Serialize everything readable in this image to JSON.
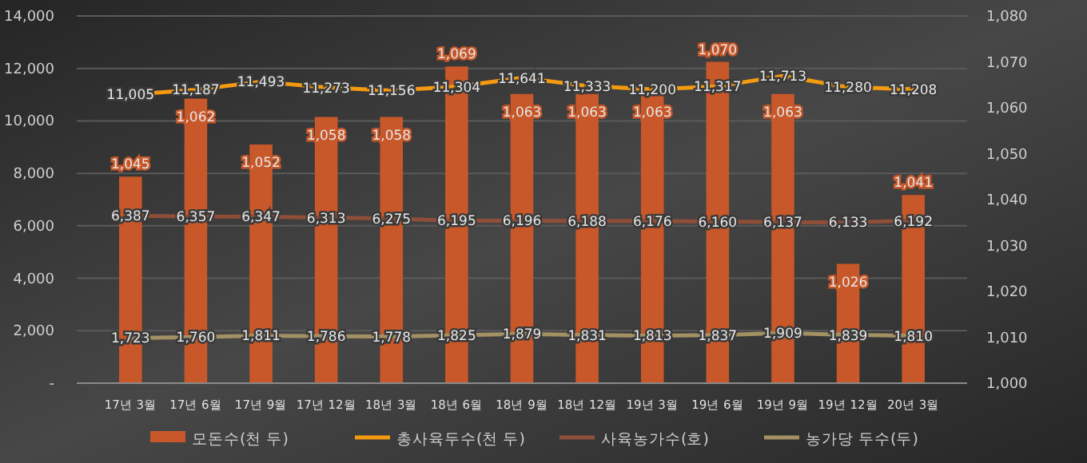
{
  "chart_data": {
    "type": "bar",
    "categories": [
      "17년 3월",
      "17년 6월",
      "17년 9월",
      "17년 12월",
      "18년 3월",
      "18년 6월",
      "18년 9월",
      "18년 12월",
      "19년 3월",
      "19년 6월",
      "19년 9월",
      "19년 12월",
      "20년 3월"
    ],
    "series": [
      {
        "name": "모돈수(천 두)",
        "axis": "y2",
        "color": "#c8582a",
        "values": [
          1045,
          1062,
          1052,
          1058,
          1058,
          1069,
          1063,
          1063,
          1063,
          1070,
          1063,
          1026,
          1041
        ],
        "value_labels": [
          "1,045",
          "1,062",
          "1,052",
          "1,058",
          "1,058",
          "1,069",
          "1,063",
          "1,063",
          "1,063",
          "1,070",
          "1,063",
          "1,026",
          "1,041"
        ]
      },
      {
        "name": "총사육두수(천 두)",
        "type": "line",
        "axis": "y",
        "color": "#f39a12",
        "values": [
          11005,
          11187,
          11493,
          11273,
          11156,
          11304,
          11641,
          11333,
          11200,
          11317,
          11713,
          11280,
          11208
        ],
        "value_labels": [
          "11,005",
          "11,187",
          "11,493",
          "11,273",
          "11,156",
          "11,304",
          "11,641",
          "11,333",
          "11,200",
          "11,317",
          "11,713",
          "11,280",
          "11,208"
        ]
      },
      {
        "name": "사육농가수(호)",
        "type": "line",
        "axis": "y",
        "color": "#8e4e38",
        "values": [
          6387,
          6357,
          6347,
          6313,
          6275,
          6195,
          6196,
          6188,
          6176,
          6160,
          6137,
          6133,
          6192
        ],
        "value_labels": [
          "6,387",
          "6,357",
          "6,347",
          "6,313",
          "6,275",
          "6,195",
          "6,196",
          "6,188",
          "6,176",
          "6,160",
          "6,137",
          "6,133",
          "6,192"
        ]
      },
      {
        "name": "농가당 두수(두)",
        "type": "line",
        "axis": "y",
        "color": "#a39164",
        "values": [
          1723,
          1760,
          1811,
          1786,
          1778,
          1825,
          1879,
          1831,
          1813,
          1837,
          1909,
          1839,
          1810
        ],
        "value_labels": [
          "1,723",
          "1,760",
          "1,811",
          "1,786",
          "1,778",
          "1,825",
          "1,879",
          "1,831",
          "1,813",
          "1,837",
          "1,909",
          "1,839",
          "1,810"
        ]
      }
    ],
    "ylim": [
      0,
      14000
    ],
    "yticks": [
      {
        "value": 0,
        "label": "-"
      },
      {
        "value": 2000,
        "label": "2,000"
      },
      {
        "value": 4000,
        "label": "4,000"
      },
      {
        "value": 6000,
        "label": "6,000"
      },
      {
        "value": 8000,
        "label": "8,000"
      },
      {
        "value": 10000,
        "label": "10,000"
      },
      {
        "value": 12000,
        "label": "12,000"
      },
      {
        "value": 14000,
        "label": "14,000"
      }
    ],
    "y2lim": [
      1000,
      1080
    ],
    "y2ticks": [
      {
        "value": 1000,
        "label": "1,000"
      },
      {
        "value": 1010,
        "label": "1,010"
      },
      {
        "value": 1020,
        "label": "1,020"
      },
      {
        "value": 1030,
        "label": "1,030"
      },
      {
        "value": 1040,
        "label": "1,040"
      },
      {
        "value": 1050,
        "label": "1,050"
      },
      {
        "value": 1060,
        "label": "1,060"
      },
      {
        "value": 1070,
        "label": "1,070"
      },
      {
        "value": 1080,
        "label": "1,080"
      }
    ],
    "grid": "y",
    "legend": "bottom",
    "marker": "none"
  }
}
